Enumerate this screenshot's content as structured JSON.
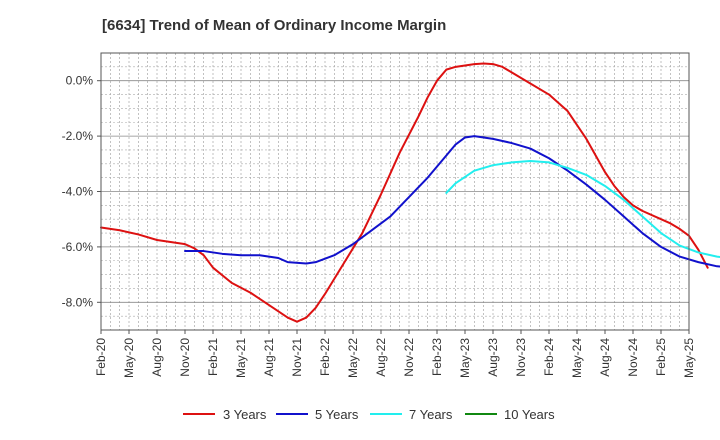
{
  "chart_data": {
    "type": "line",
    "title": "[6634]  Trend of Mean of Ordinary Income Margin",
    "xlabel": "",
    "ylabel": "",
    "x_ticks": [
      "Feb-20",
      "May-20",
      "Aug-20",
      "Nov-20",
      "Feb-21",
      "May-21",
      "Aug-21",
      "Nov-21",
      "Feb-22",
      "May-22",
      "Aug-22",
      "Nov-22",
      "Feb-23",
      "May-23",
      "Aug-23",
      "Nov-23",
      "Feb-24",
      "May-24",
      "Aug-24",
      "Nov-24",
      "Feb-25",
      "May-25"
    ],
    "y_ticks": [
      "0.0%",
      "-2.0%",
      "-4.0%",
      "-6.0%",
      "-8.0%"
    ],
    "y_tick_values": [
      0,
      -2,
      -4,
      -6,
      -8
    ],
    "ylim": [
      -9.0,
      1.0
    ],
    "grid": true,
    "legend_position": "bottom",
    "x_index_meaning": "months after Feb-20",
    "series": [
      {
        "name": "3 Years",
        "color": "#dd1111",
        "points": [
          [
            0,
            -5.3
          ],
          [
            2,
            -5.4
          ],
          [
            4,
            -5.55
          ],
          [
            6,
            -5.75
          ],
          [
            8,
            -5.85
          ],
          [
            9,
            -5.9
          ],
          [
            10,
            -6.05
          ],
          [
            11,
            -6.3
          ],
          [
            12,
            -6.75
          ],
          [
            14,
            -7.3
          ],
          [
            16,
            -7.65
          ],
          [
            18,
            -8.1
          ],
          [
            20,
            -8.55
          ],
          [
            21,
            -8.7
          ],
          [
            22,
            -8.55
          ],
          [
            23,
            -8.2
          ],
          [
            24,
            -7.7
          ],
          [
            26,
            -6.6
          ],
          [
            28,
            -5.5
          ],
          [
            30,
            -4.1
          ],
          [
            32,
            -2.6
          ],
          [
            34,
            -1.3
          ],
          [
            35,
            -0.6
          ],
          [
            36,
            0.0
          ],
          [
            37,
            0.4
          ],
          [
            38,
            0.5
          ],
          [
            40,
            0.6
          ],
          [
            41,
            0.62
          ],
          [
            42,
            0.6
          ],
          [
            43,
            0.5
          ],
          [
            44,
            0.3
          ],
          [
            46,
            -0.1
          ],
          [
            48,
            -0.5
          ],
          [
            50,
            -1.1
          ],
          [
            52,
            -2.1
          ],
          [
            54,
            -3.3
          ],
          [
            55,
            -3.8
          ],
          [
            56,
            -4.2
          ],
          [
            57,
            -4.5
          ],
          [
            58,
            -4.7
          ],
          [
            60,
            -5.0
          ],
          [
            61,
            -5.15
          ],
          [
            62,
            -5.35
          ],
          [
            63,
            -5.6
          ],
          [
            64,
            -6.1
          ],
          [
            65,
            -6.75
          ]
        ]
      },
      {
        "name": "5 Years",
        "color": "#1111cc",
        "points": [
          [
            9,
            -6.15
          ],
          [
            11,
            -6.15
          ],
          [
            13,
            -6.25
          ],
          [
            15,
            -6.3
          ],
          [
            17,
            -6.3
          ],
          [
            19,
            -6.4
          ],
          [
            20,
            -6.55
          ],
          [
            22,
            -6.6
          ],
          [
            23,
            -6.55
          ],
          [
            25,
            -6.3
          ],
          [
            27,
            -5.9
          ],
          [
            29,
            -5.4
          ],
          [
            31,
            -4.9
          ],
          [
            33,
            -4.2
          ],
          [
            35,
            -3.5
          ],
          [
            37,
            -2.7
          ],
          [
            38,
            -2.3
          ],
          [
            39,
            -2.05
          ],
          [
            40,
            -2.0
          ],
          [
            42,
            -2.1
          ],
          [
            44,
            -2.25
          ],
          [
            46,
            -2.45
          ],
          [
            48,
            -2.8
          ],
          [
            50,
            -3.25
          ],
          [
            52,
            -3.75
          ],
          [
            54,
            -4.3
          ],
          [
            56,
            -4.9
          ],
          [
            58,
            -5.5
          ],
          [
            60,
            -6.0
          ],
          [
            62,
            -6.35
          ],
          [
            64,
            -6.55
          ],
          [
            66,
            -6.7
          ],
          [
            68,
            -6.75
          ],
          [
            69,
            -6.75
          ]
        ]
      },
      {
        "name": "7 Years",
        "color": "#22eeee",
        "points": [
          [
            37,
            -4.05
          ],
          [
            38,
            -3.7
          ],
          [
            40,
            -3.25
          ],
          [
            42,
            -3.05
          ],
          [
            44,
            -2.95
          ],
          [
            46,
            -2.9
          ],
          [
            48,
            -2.95
          ],
          [
            50,
            -3.15
          ],
          [
            52,
            -3.4
          ],
          [
            54,
            -3.8
          ],
          [
            56,
            -4.3
          ],
          [
            58,
            -4.9
          ],
          [
            60,
            -5.5
          ],
          [
            62,
            -5.95
          ],
          [
            64,
            -6.2
          ],
          [
            66,
            -6.35
          ],
          [
            68,
            -6.45
          ],
          [
            69,
            -6.55
          ]
        ]
      },
      {
        "name": "10 Years",
        "color": "#118811",
        "points": []
      }
    ]
  }
}
